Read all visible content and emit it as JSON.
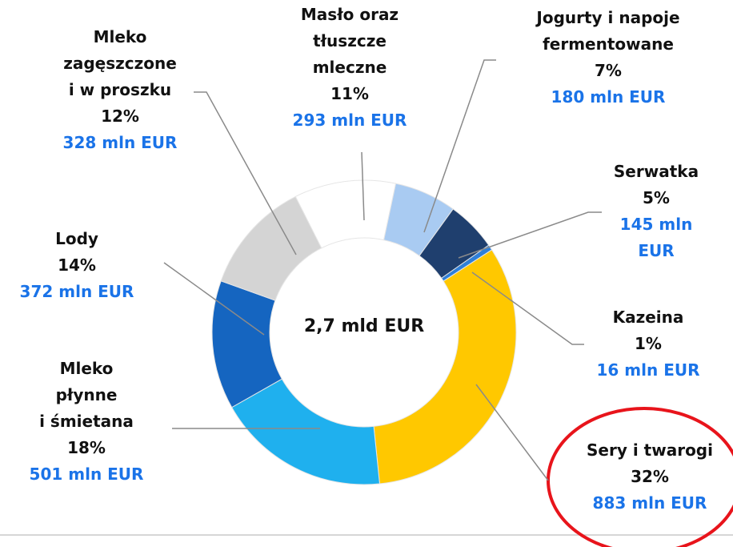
{
  "chart_data": {
    "type": "donut",
    "center_label": "2,7 mld EUR",
    "categories": [
      "Jogurty i napoje\nfermentowane",
      "Serwatka",
      "Kazeina",
      "Sery i twarogi",
      "Mleko\npłynne\ni śmietana",
      "Lody",
      "Mleko\nzagęszczone\ni w proszku",
      "Masło oraz\ntłuszcze\nmleczne"
    ],
    "values": [
      180,
      145,
      16,
      883,
      501,
      372,
      328,
      293
    ],
    "value_labels": [
      "180 mln EUR",
      "145 mln EUR",
      "16 mln EUR",
      "883 mln EUR",
      "501 mln EUR",
      "372 mln EUR",
      "328 mln EUR",
      "293 mln EUR"
    ],
    "percentages": [
      7,
      5,
      1,
      32,
      18,
      14,
      12,
      11
    ],
    "percentage_labels": [
      "7%",
      "5%",
      "1%",
      "32%",
      "18%",
      "14%",
      "12%",
      "11%"
    ],
    "colors": [
      "#a9cbf2",
      "#1f3f6e",
      "#2f7fd8",
      "#ffc800",
      "#1fb0ee",
      "#1565c0",
      "#d4d4d4",
      "#ffffff"
    ]
  }
}
